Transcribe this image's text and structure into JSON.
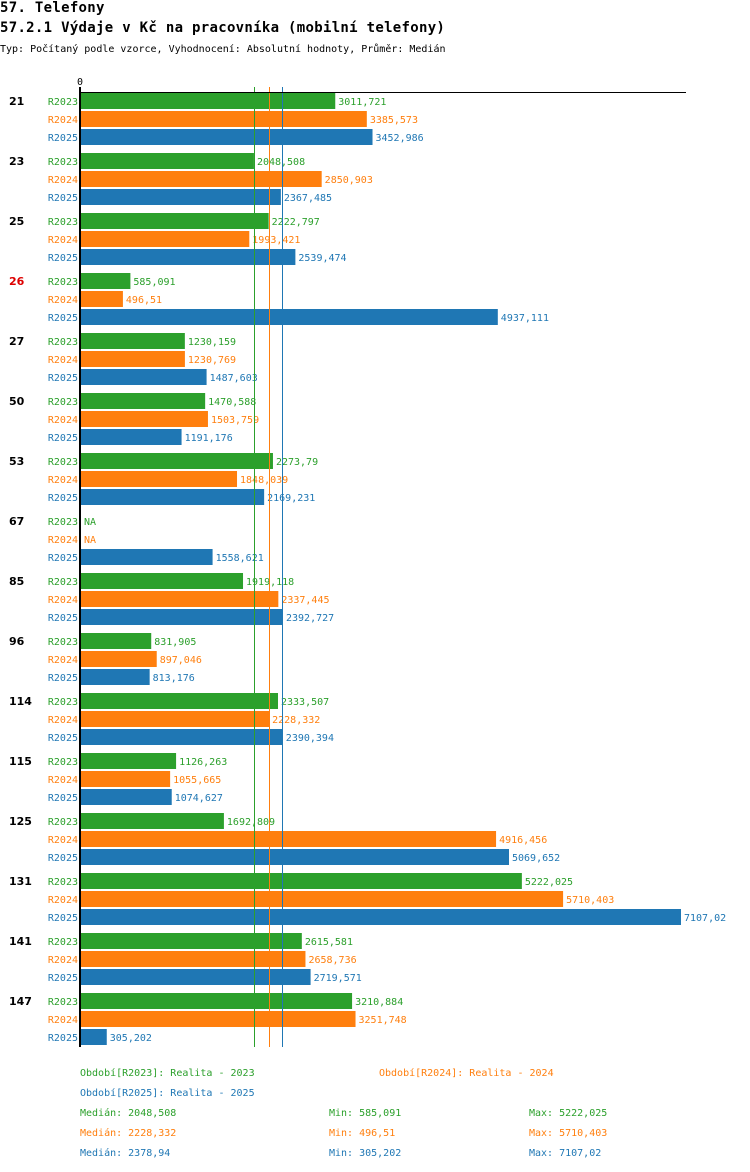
{
  "header": {
    "title": "57. Telefony",
    "subtitle": "57.2.1 Výdaje v Kč na pracovníka (mobilní telefony)",
    "description": "Typ: Počítaný podle vzorce, Vyhodnocení: Absolutní hodnoty, Průměr: Medián"
  },
  "colors": {
    "R2023": "#2ca02c",
    "R2024": "#ff7f0e",
    "R2025": "#1f77b4",
    "highlight_group": "#dd0000",
    "axis": "#000000"
  },
  "chart_data": {
    "type": "bar",
    "orientation": "horizontal",
    "title": "57.2.1 Výdaje v Kč na pracovníka (mobilní telefony)",
    "xlabel": "",
    "ylabel": "",
    "x_tick_labels": [
      "0"
    ],
    "xlim": [
      0,
      7107.02
    ],
    "grid": false,
    "categories": [
      "21",
      "23",
      "25",
      "26",
      "27",
      "50",
      "53",
      "67",
      "85",
      "96",
      "114",
      "115",
      "125",
      "131",
      "141",
      "147"
    ],
    "highlighted_categories": [
      "26"
    ],
    "series": [
      {
        "name": "R2023",
        "values": [
          3011.721,
          2048.508,
          2222.797,
          585.091,
          1230.159,
          1470.588,
          2273.79,
          null,
          1919.118,
          831.905,
          2333.507,
          1126.263,
          1692.809,
          5222.025,
          2615.581,
          3210.884
        ],
        "labels": [
          "3011,721",
          "2048,508",
          "2222,797",
          "585,091",
          "1230,159",
          "1470,588",
          "2273,79",
          "NA",
          "1919,118",
          "831,905",
          "2333,507",
          "1126,263",
          "1692,809",
          "5222,025",
          "2615,581",
          "3210,884"
        ]
      },
      {
        "name": "R2024",
        "values": [
          3385.573,
          2850.903,
          1993.421,
          496.51,
          1230.769,
          1503.759,
          1848.039,
          null,
          2337.445,
          897.046,
          2228.332,
          1055.665,
          4916.456,
          5710.403,
          2658.736,
          3251.748
        ],
        "labels": [
          "3385,573",
          "2850,903",
          "1993,421",
          "496,51",
          "1230,769",
          "1503,759",
          "1848,039",
          "NA",
          "2337,445",
          "897,046",
          "2228,332",
          "1055,665",
          "4916,456",
          "5710,403",
          "2658,736",
          "3251,748"
        ]
      },
      {
        "name": "R2025",
        "values": [
          3452.986,
          2367.485,
          2539.474,
          4937.111,
          1487.603,
          1191.176,
          2169.231,
          1558.621,
          2392.727,
          813.176,
          2390.394,
          1074.627,
          5069.652,
          7107.02,
          2719.571,
          305.202
        ],
        "labels": [
          "3452,986",
          "2367,485",
          "2539,474",
          "4937,111",
          "1487,603",
          "1191,176",
          "2169,231",
          "1558,621",
          "2392,727",
          "813,176",
          "2390,394",
          "1074,627",
          "5069,652",
          "7107,02",
          "2719,571",
          "305,202"
        ]
      }
    ],
    "reference_lines": [
      {
        "series": "R2023",
        "type": "median",
        "value": 2048.508
      },
      {
        "series": "R2024",
        "type": "median",
        "value": 2228.332
      },
      {
        "series": "R2025",
        "type": "median",
        "value": 2378.94
      }
    ]
  },
  "legend": {
    "periods": [
      {
        "series": "R2023",
        "text": "Období[R2023]: Realita - 2023"
      },
      {
        "series": "R2024",
        "text": "Období[R2024]: Realita - 2024"
      },
      {
        "series": "R2025",
        "text": "Období[R2025]: Realita - 2025"
      }
    ],
    "stats": [
      {
        "series": "R2023",
        "median": "Medián: 2048,508",
        "min": "Min: 585,091",
        "max": "Max: 5222,025"
      },
      {
        "series": "R2024",
        "median": "Medián: 2228,332",
        "min": "Min: 496,51",
        "max": "Max: 5710,403"
      },
      {
        "series": "R2025",
        "median": "Medián: 2378,94",
        "min": "Min: 305,202",
        "max": "Max: 7107,02"
      }
    ]
  }
}
